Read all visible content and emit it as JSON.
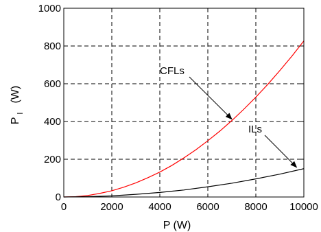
{
  "chart_data": {
    "type": "line",
    "xlabel": "P  (W)",
    "ylabel": {
      "main": "P",
      "subscript": "l",
      "unit": "(W)"
    },
    "xlim": [
      0,
      10000
    ],
    "ylim": [
      0,
      1000
    ],
    "xticks": [
      0,
      2000,
      4000,
      6000,
      8000,
      10000
    ],
    "yticks": [
      0,
      200,
      400,
      600,
      800,
      1000
    ],
    "grid": true,
    "grid_style": "dashed",
    "series": [
      {
        "name": "CFLs",
        "color": "#ff0000",
        "x": [
          0,
          500,
          1000,
          1500,
          2000,
          2500,
          3000,
          3500,
          4000,
          4500,
          5000,
          5500,
          6000,
          6500,
          7000,
          7500,
          8000,
          8500,
          9000,
          9500,
          10000
        ],
        "y": [
          0,
          2,
          8,
          19,
          33,
          52,
          75,
          102,
          132,
          167,
          207,
          250,
          298,
          349,
          405,
          465,
          529,
          597,
          670,
          746,
          827
        ]
      },
      {
        "name": "ILs",
        "color": "#000000",
        "x": [
          0,
          1000,
          2000,
          3000,
          4000,
          5000,
          6000,
          7000,
          8000,
          9000,
          10000
        ],
        "y": [
          0,
          2,
          6,
          14,
          24,
          37,
          54,
          73,
          96,
          121,
          150
        ]
      }
    ],
    "annotations": [
      {
        "text": "CFLs",
        "series": "CFLs",
        "arrow_to": [
          7000,
          405
        ]
      },
      {
        "text": "ILs",
        "series": "ILs",
        "arrow_to": [
          9700,
          150
        ]
      }
    ]
  }
}
